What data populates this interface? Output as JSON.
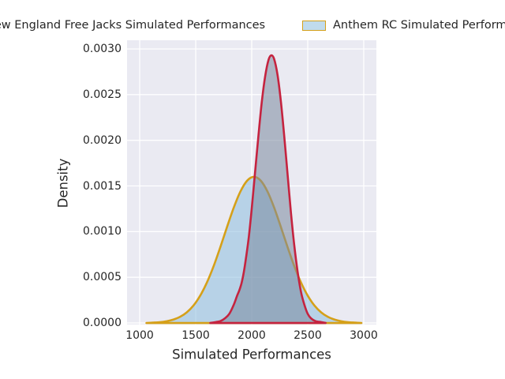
{
  "chart_data": {
    "type": "area",
    "subtype": "kde-density",
    "title": "",
    "xlabel": "Simulated Performances",
    "ylabel": "Density",
    "x_ticks": [
      1000,
      1500,
      2000,
      2500,
      3000
    ],
    "x_tick_labels": [
      "1000",
      "1500",
      "2000",
      "2500",
      "3000"
    ],
    "y_ticks": [
      0.0,
      0.0005,
      0.001,
      0.0015,
      0.002,
      0.0025,
      0.003
    ],
    "y_tick_labels": [
      "0.0000",
      "0.0005",
      "0.0010",
      "0.0015",
      "0.0020",
      "0.0025",
      "0.0030"
    ],
    "xlim": [
      887,
      3113
    ],
    "ylim": [
      -1.7e-05,
      0.003095
    ],
    "grid": true,
    "legend_position": "top-outside",
    "colors": {
      "axes_background": "#eaeaf2",
      "grid": "#ffffff",
      "text": "#262626",
      "anthem_edge": "#d5a019",
      "anthem_fill": "rgba(140,190,222,0.55)",
      "freejacks_edge": "#c5233f",
      "freejacks_fill": "rgba(122,137,158,0.55)"
    },
    "legend": [
      {
        "label": "New England Free Jacks Simulated Performances",
        "fill": "rgba(122,137,158,0.55)",
        "edge": "#c5233f"
      },
      {
        "label": "Anthem RC Simulated Performances",
        "fill": "rgba(140,190,222,0.55)",
        "edge": "#d5a019"
      }
    ],
    "series": [
      {
        "name": "Anthem RC Simulated Performances",
        "edge_color": "#d5a019",
        "fill_color": "rgba(140,190,222,0.55)",
        "peak": {
          "x": 2020,
          "density": 0.0016
        },
        "points": [
          [
            1060,
            0
          ],
          [
            1120,
            4e-06
          ],
          [
            1180,
            9e-06
          ],
          [
            1240,
            1.9e-05
          ],
          [
            1300,
            3.7e-05
          ],
          [
            1360,
            6.7e-05
          ],
          [
            1420,
            0.000116
          ],
          [
            1480,
            0.000191
          ],
          [
            1540,
            0.000299
          ],
          [
            1600,
            0.000443
          ],
          [
            1660,
            0.000622
          ],
          [
            1720,
            0.000831
          ],
          [
            1780,
            0.001052
          ],
          [
            1840,
            0.001264
          ],
          [
            1900,
            0.001441
          ],
          [
            1960,
            0.001559
          ],
          [
            2020,
            0.0016
          ],
          [
            2080,
            0.001559
          ],
          [
            2140,
            0.001441
          ],
          [
            2200,
            0.001264
          ],
          [
            2260,
            0.001052
          ],
          [
            2320,
            0.000831
          ],
          [
            2380,
            0.000622
          ],
          [
            2440,
            0.000443
          ],
          [
            2500,
            0.000299
          ],
          [
            2560,
            0.000191
          ],
          [
            2620,
            0.000116
          ],
          [
            2680,
            6.7e-05
          ],
          [
            2740,
            3.7e-05
          ],
          [
            2800,
            1.9e-05
          ],
          [
            2860,
            9e-06
          ],
          [
            2920,
            4e-06
          ],
          [
            2980,
            0
          ]
        ]
      },
      {
        "name": "New England Free Jacks Simulated Performances",
        "edge_color": "#c5233f",
        "fill_color": "rgba(122,137,158,0.55)",
        "peak": {
          "x": 2175,
          "density": 0.00293
        },
        "points": [
          [
            1630,
            0
          ],
          [
            1680,
            1e-05
          ],
          [
            1720,
            2e-05
          ],
          [
            1760,
            5e-05
          ],
          [
            1800,
            0.0001
          ],
          [
            1840,
            0.0002
          ],
          [
            1870,
            0.0003
          ],
          [
            1890,
            0.00036
          ],
          [
            1910,
            0.00044
          ],
          [
            1930,
            0.00056
          ],
          [
            1950,
            0.00072
          ],
          [
            1975,
            0.00095
          ],
          [
            2000,
            0.00125
          ],
          [
            2030,
            0.00165
          ],
          [
            2060,
            0.00205
          ],
          [
            2090,
            0.00242
          ],
          [
            2120,
            0.0027
          ],
          [
            2150,
            0.00288
          ],
          [
            2175,
            0.00293
          ],
          [
            2200,
            0.00289
          ],
          [
            2230,
            0.00272
          ],
          [
            2260,
            0.00243
          ],
          [
            2290,
            0.00205
          ],
          [
            2320,
            0.00163
          ],
          [
            2350,
            0.00121
          ],
          [
            2380,
            0.00085
          ],
          [
            2410,
            0.00056
          ],
          [
            2440,
            0.00034
          ],
          [
            2470,
            0.0002
          ],
          [
            2500,
            0.0001
          ],
          [
            2530,
            5e-05
          ],
          [
            2570,
            2e-05
          ],
          [
            2620,
            1e-05
          ],
          [
            2660,
            0
          ]
        ]
      }
    ]
  }
}
